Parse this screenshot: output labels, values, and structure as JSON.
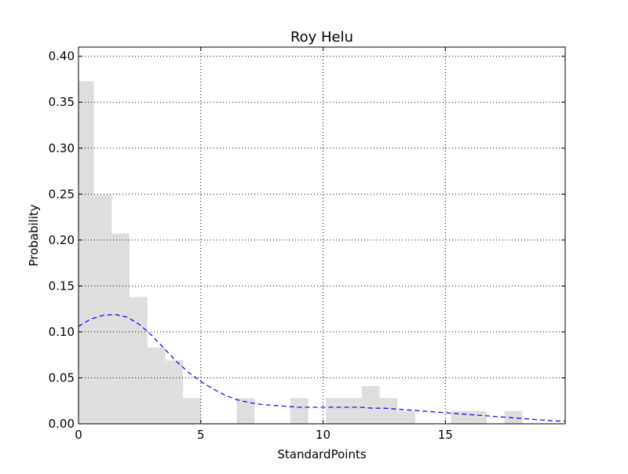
{
  "chart_data": {
    "type": "bar",
    "title": "Roy Helu",
    "xlabel": "StandardPoints",
    "ylabel": "Probability",
    "xlim": [
      0,
      19.9
    ],
    "ylim": [
      0,
      0.41
    ],
    "grid": true,
    "xticks": [
      0,
      5,
      10,
      15
    ],
    "xtick_labels": [
      "0",
      "5",
      "10",
      "15"
    ],
    "yticks": [
      0.0,
      0.05,
      0.1,
      0.15,
      0.2,
      0.25,
      0.3,
      0.35,
      0.4
    ],
    "ytick_labels": [
      "0.00",
      "0.05",
      "0.10",
      "0.15",
      "0.20",
      "0.25",
      "0.30",
      "0.35",
      "0.40"
    ],
    "colors": {
      "bars": "#dedede",
      "curve": "#0000ff",
      "grid": "#000000"
    },
    "histogram": [
      {
        "x0": 0.0,
        "x1": 0.63,
        "value": 0.373
      },
      {
        "x0": 0.63,
        "x1": 1.36,
        "value": 0.249
      },
      {
        "x0": 1.36,
        "x1": 2.09,
        "value": 0.207
      },
      {
        "x0": 2.09,
        "x1": 2.82,
        "value": 0.138
      },
      {
        "x0": 2.82,
        "x1": 3.55,
        "value": 0.083
      },
      {
        "x0": 3.55,
        "x1": 4.28,
        "value": 0.069
      },
      {
        "x0": 4.28,
        "x1": 5.01,
        "value": 0.028
      },
      {
        "x0": 6.47,
        "x1": 7.2,
        "value": 0.028
      },
      {
        "x0": 8.66,
        "x1": 9.39,
        "value": 0.028
      },
      {
        "x0": 10.12,
        "x1": 10.85,
        "value": 0.028
      },
      {
        "x0": 10.85,
        "x1": 11.58,
        "value": 0.028
      },
      {
        "x0": 11.58,
        "x1": 12.31,
        "value": 0.041
      },
      {
        "x0": 12.31,
        "x1": 13.04,
        "value": 0.028
      },
      {
        "x0": 13.04,
        "x1": 13.77,
        "value": 0.014
      },
      {
        "x0": 15.23,
        "x1": 15.96,
        "value": 0.014
      },
      {
        "x0": 15.96,
        "x1": 16.69,
        "value": 0.014
      },
      {
        "x0": 17.42,
        "x1": 18.15,
        "value": 0.014
      }
    ],
    "density_curve": {
      "style": "dashed",
      "x": [
        0,
        0.5,
        1,
        1.5,
        2,
        2.5,
        3,
        3.5,
        4,
        4.5,
        5,
        5.5,
        6,
        6.5,
        7,
        7.5,
        8,
        8.5,
        9,
        9.5,
        10,
        10.5,
        11,
        11.5,
        12,
        12.5,
        13,
        13.5,
        14,
        14.5,
        15,
        15.5,
        16,
        16.5,
        17,
        17.5,
        18,
        18.5,
        19,
        19.5,
        19.9
      ],
      "y": [
        0.106,
        0.114,
        0.118,
        0.119,
        0.116,
        0.108,
        0.096,
        0.082,
        0.068,
        0.056,
        0.046,
        0.038,
        0.031,
        0.026,
        0.023,
        0.021,
        0.02,
        0.019,
        0.018,
        0.018,
        0.018,
        0.018,
        0.018,
        0.018,
        0.017,
        0.017,
        0.016,
        0.015,
        0.014,
        0.013,
        0.012,
        0.011,
        0.01,
        0.009,
        0.008,
        0.007,
        0.006,
        0.005,
        0.004,
        0.003,
        0.003
      ]
    }
  }
}
